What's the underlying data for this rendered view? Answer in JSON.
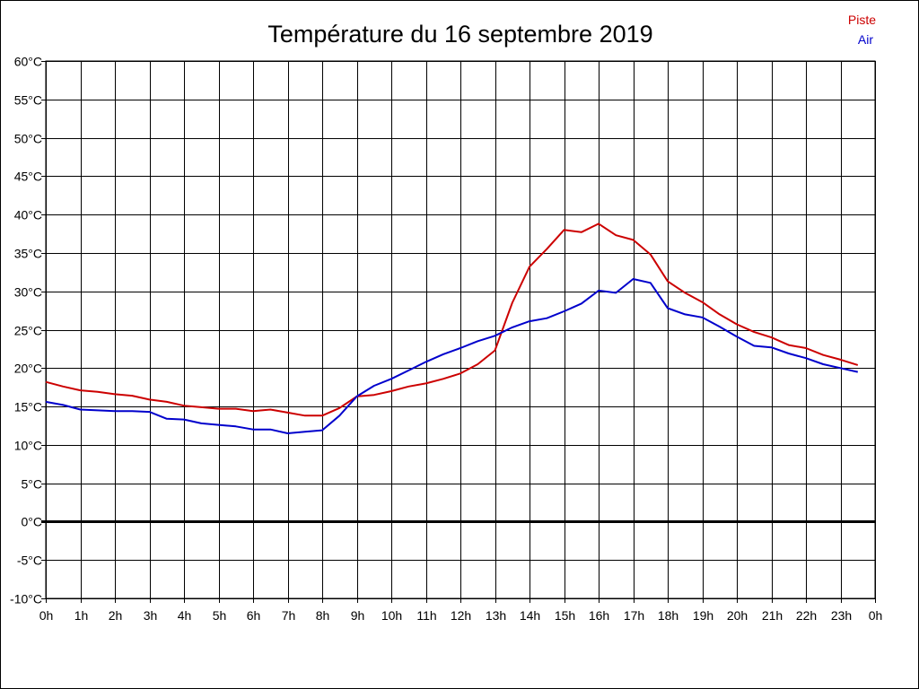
{
  "chart_data": {
    "type": "line",
    "title": "Température du 16 septembre 2019",
    "xlabel": "",
    "ylabel": "",
    "x_unit": "hours",
    "xlim": [
      0,
      24
    ],
    "ylim": [
      -10,
      60
    ],
    "grid": true,
    "legend_position": "top-right",
    "x_ticks": [
      "0h",
      "1h",
      "2h",
      "3h",
      "4h",
      "5h",
      "6h",
      "7h",
      "8h",
      "9h",
      "10h",
      "11h",
      "12h",
      "13h",
      "14h",
      "15h",
      "16h",
      "17h",
      "18h",
      "19h",
      "20h",
      "21h",
      "22h",
      "23h",
      "0h"
    ],
    "y_ticks": [
      "-10°C",
      "-5°C",
      "0°C",
      "5°C",
      "10°C",
      "15°C",
      "20°C",
      "25°C",
      "30°C",
      "35°C",
      "40°C",
      "45°C",
      "50°C",
      "55°C",
      "60°C"
    ],
    "y_tick_values": [
      -10,
      -5,
      0,
      5,
      10,
      15,
      20,
      25,
      30,
      35,
      40,
      45,
      50,
      55,
      60
    ],
    "zero_line": 0,
    "series": [
      {
        "name": "Piste",
        "color": "#cc0000",
        "points": [
          [
            0,
            18.2
          ],
          [
            0.5,
            17.6
          ],
          [
            1,
            17.1
          ],
          [
            1.5,
            16.9
          ],
          [
            2,
            16.6
          ],
          [
            2.5,
            16.4
          ],
          [
            3,
            15.9
          ],
          [
            3.5,
            15.6
          ],
          [
            4,
            15.1
          ],
          [
            4.5,
            14.9
          ],
          [
            5,
            14.7
          ],
          [
            5.5,
            14.7
          ],
          [
            6,
            14.4
          ],
          [
            6.5,
            14.6
          ],
          [
            7,
            14.2
          ],
          [
            7.5,
            13.8
          ],
          [
            8,
            13.8
          ],
          [
            8.5,
            14.8
          ],
          [
            9,
            16.3
          ],
          [
            9.5,
            16.5
          ],
          [
            10,
            17
          ],
          [
            10.5,
            17.6
          ],
          [
            11,
            18
          ],
          [
            11.5,
            18.6
          ],
          [
            12,
            19.3
          ],
          [
            12.5,
            20.5
          ],
          [
            13,
            22.3
          ],
          [
            13.5,
            28.5
          ],
          [
            14,
            33.2
          ],
          [
            14.5,
            35.5
          ],
          [
            15,
            38
          ],
          [
            15.5,
            37.7
          ],
          [
            16,
            38.8
          ],
          [
            16.5,
            37.3
          ],
          [
            17,
            36.7
          ],
          [
            17.5,
            34.8
          ],
          [
            18,
            31.3
          ],
          [
            18.5,
            29.8
          ],
          [
            19,
            28.6
          ],
          [
            19.5,
            27
          ],
          [
            20,
            25.7
          ],
          [
            20.5,
            24.7
          ],
          [
            21,
            24
          ],
          [
            21.5,
            23
          ],
          [
            22,
            22.6
          ],
          [
            22.5,
            21.7
          ],
          [
            23,
            21.1
          ],
          [
            23.5,
            20.4
          ]
        ]
      },
      {
        "name": "Air",
        "color": "#0000cc",
        "points": [
          [
            0,
            15.6
          ],
          [
            0.5,
            15.2
          ],
          [
            1,
            14.6
          ],
          [
            1.5,
            14.5
          ],
          [
            2,
            14.4
          ],
          [
            2.5,
            14.4
          ],
          [
            3,
            14.3
          ],
          [
            3.5,
            13.4
          ],
          [
            4,
            13.3
          ],
          [
            4.5,
            12.8
          ],
          [
            5,
            12.6
          ],
          [
            5.5,
            12.4
          ],
          [
            6,
            12
          ],
          [
            6.5,
            12
          ],
          [
            7,
            11.5
          ],
          [
            7.5,
            11.7
          ],
          [
            8,
            11.9
          ],
          [
            8.5,
            13.8
          ],
          [
            9,
            16.3
          ],
          [
            9.5,
            17.7
          ],
          [
            10,
            18.6
          ],
          [
            10.5,
            19.7
          ],
          [
            11,
            20.8
          ],
          [
            11.5,
            21.8
          ],
          [
            12,
            22.6
          ],
          [
            12.5,
            23.5
          ],
          [
            13,
            24.2
          ],
          [
            13.5,
            25.3
          ],
          [
            14,
            26.1
          ],
          [
            14.5,
            26.5
          ],
          [
            15,
            27.4
          ],
          [
            15.5,
            28.4
          ],
          [
            16,
            30.1
          ],
          [
            16.5,
            29.8
          ],
          [
            17,
            31.6
          ],
          [
            17.5,
            31.1
          ],
          [
            18,
            27.8
          ],
          [
            18.5,
            27
          ],
          [
            19,
            26.6
          ],
          [
            19.5,
            25.4
          ],
          [
            20,
            24.1
          ],
          [
            20.5,
            22.9
          ],
          [
            21,
            22.7
          ],
          [
            21.5,
            21.9
          ],
          [
            22,
            21.3
          ],
          [
            22.5,
            20.5
          ],
          [
            23,
            20
          ],
          [
            23.5,
            19.5
          ]
        ]
      }
    ]
  }
}
